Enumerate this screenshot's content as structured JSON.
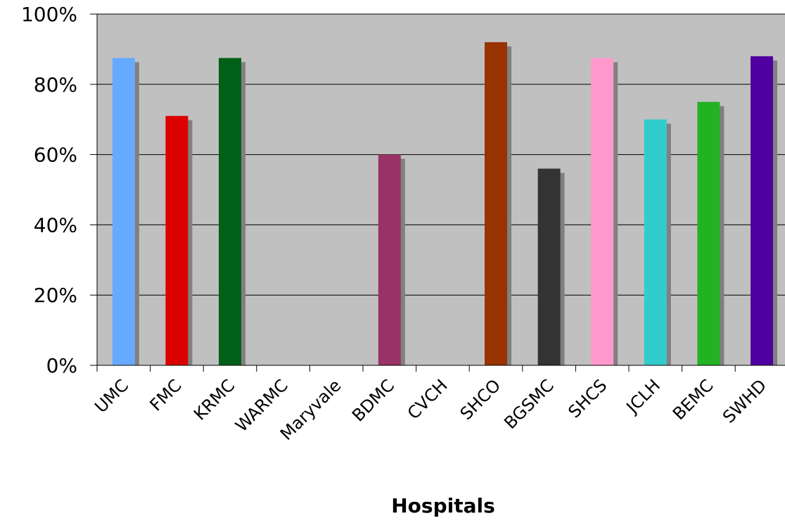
{
  "chart_data": {
    "type": "bar",
    "title": "",
    "xlabel": "Hospitals",
    "ylabel": "",
    "categories": [
      "UMC",
      "FMC",
      "KRMC",
      "WARMC",
      "Maryvale",
      "BDMC",
      "CVCH",
      "SHCO",
      "BGSMC",
      "SHCS",
      "JCLH",
      "BEMC",
      "SWHD"
    ],
    "values": [
      0.875,
      0.71,
      0.875,
      null,
      null,
      0.6,
      null,
      0.92,
      0.56,
      0.875,
      0.7,
      0.75,
      0.88
    ],
    "ylim": [
      0,
      1
    ],
    "yticks": [
      0,
      0.2,
      0.4,
      0.6,
      0.8,
      1.0
    ],
    "ytick_labels": [
      "0%",
      "20%",
      "40%",
      "60%",
      "80%",
      "100%"
    ],
    "grid": true,
    "legend": "none",
    "colors": {
      "plot_background": "#c0c0c0",
      "gridline": "#000000",
      "shadow": "#808080",
      "bars": [
        "#66aaff",
        "#dd0000",
        "#006018",
        "#999999",
        "#999999",
        "#993366",
        "#999999",
        "#993300",
        "#333333",
        "#ff99cc",
        "#33cccc",
        "#22b222",
        "#5000a0"
      ]
    }
  }
}
